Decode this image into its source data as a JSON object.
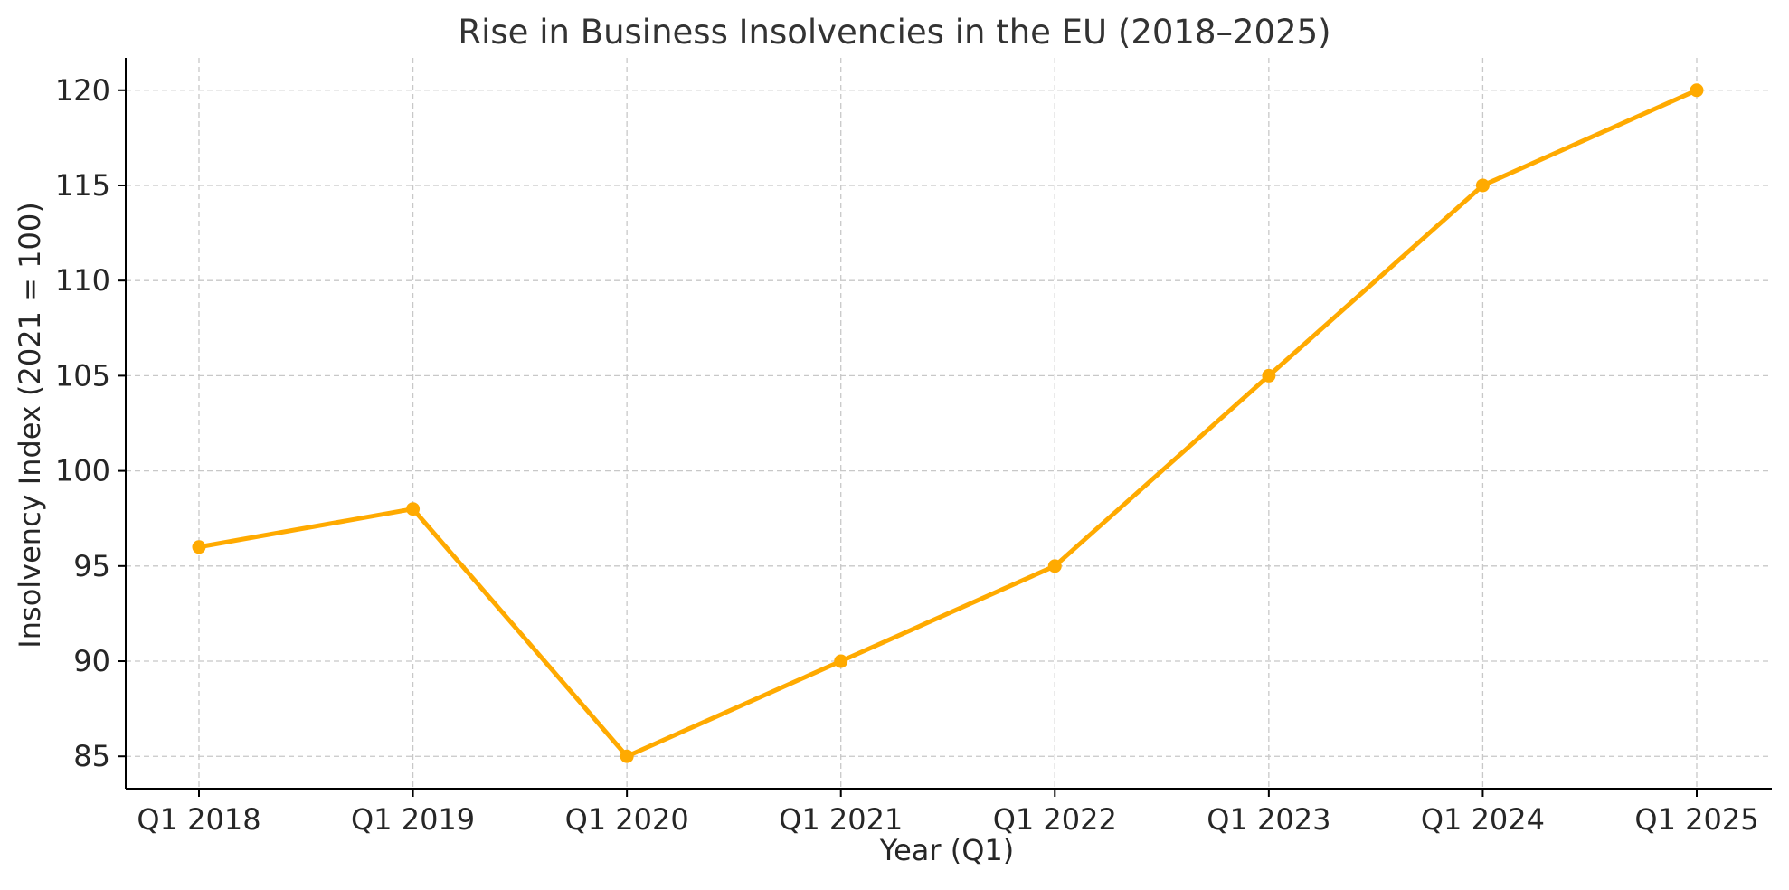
{
  "chart_data": {
    "type": "line",
    "title": "Rise in Business Insolvencies in the EU (2018–2025)",
    "xlabel": "Year (Q1)",
    "ylabel": "Insolvency Index (2021 = 100)",
    "categories": [
      "Q1 2018",
      "Q1 2019",
      "Q1 2020",
      "Q1 2021",
      "Q1 2022",
      "Q1 2023",
      "Q1 2024",
      "Q1 2025"
    ],
    "series": [
      {
        "values": [
          96,
          98,
          85,
          90,
          95,
          105,
          115,
          120
        ],
        "color": "#FFAA00",
        "marker": "circle"
      }
    ],
    "ylim": [
      83.3,
      121.7
    ],
    "yticks": [
      85,
      90,
      95,
      100,
      105,
      110,
      115,
      120
    ],
    "grid": true,
    "legend": "none"
  }
}
